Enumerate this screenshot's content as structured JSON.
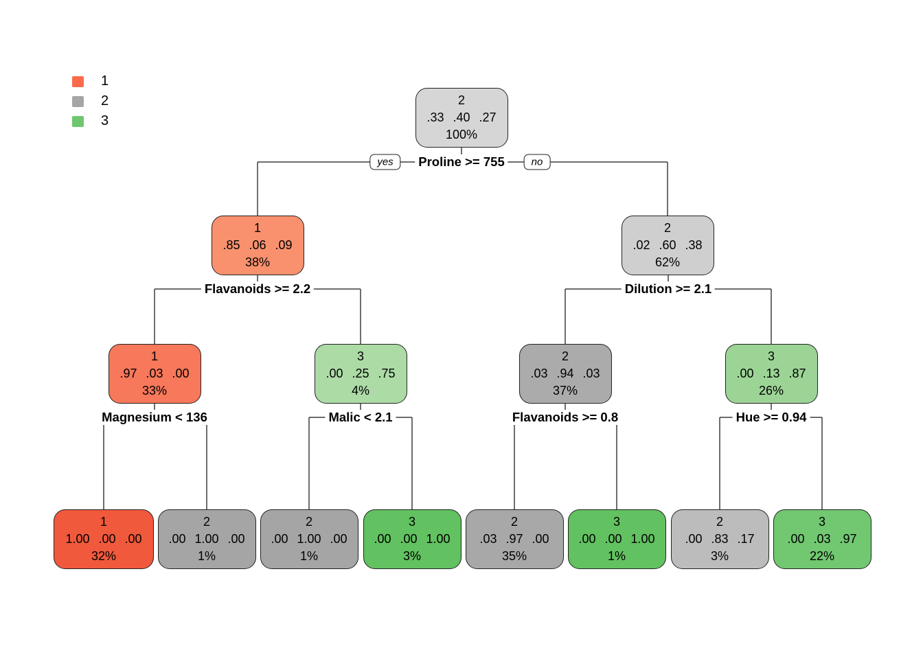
{
  "legend": {
    "items": [
      {
        "label": "1",
        "color": "#FB6B4B"
      },
      {
        "label": "2",
        "color": "#A6A6A6"
      },
      {
        "label": "3",
        "color": "#6FC66E"
      }
    ]
  },
  "tree": {
    "nodes": [
      {
        "id": "root",
        "class_label": "2",
        "probs": ".33 .40 .27",
        "pct": "100%",
        "color": "#D6D6D6"
      },
      {
        "id": "n2L",
        "class_label": "1",
        "probs": ".85 .06 .09",
        "pct": "38%",
        "color": "#F9916E"
      },
      {
        "id": "n2R",
        "class_label": "2",
        "probs": ".02 .60 .38",
        "pct": "62%",
        "color": "#CFCFCF"
      },
      {
        "id": "n3a",
        "class_label": "1",
        "probs": ".97 .03 .00",
        "pct": "33%",
        "color": "#F7785A"
      },
      {
        "id": "n3b",
        "class_label": "3",
        "probs": ".00 .25 .75",
        "pct": "4%",
        "color": "#ACDBA6"
      },
      {
        "id": "n3c",
        "class_label": "2",
        "probs": ".03 .94 .03",
        "pct": "37%",
        "color": "#ABABAB"
      },
      {
        "id": "n3d",
        "class_label": "3",
        "probs": ".00 .13 .87",
        "pct": "26%",
        "color": "#9CD496"
      },
      {
        "id": "l1",
        "class_label": "1",
        "probs": "1.00 .00 .00",
        "pct": "32%",
        "color": "#F0593C"
      },
      {
        "id": "l2",
        "class_label": "2",
        "probs": ".00 1.00 .00",
        "pct": "1%",
        "color": "#A5A5A5"
      },
      {
        "id": "l3",
        "class_label": "2",
        "probs": ".00 1.00 .00",
        "pct": "1%",
        "color": "#A5A5A5"
      },
      {
        "id": "l4",
        "class_label": "3",
        "probs": ".00 .00 1.00",
        "pct": "3%",
        "color": "#62C160"
      },
      {
        "id": "l5",
        "class_label": "2",
        "probs": ".03 .97 .00",
        "pct": "35%",
        "color": "#A8A8A8"
      },
      {
        "id": "l6",
        "class_label": "3",
        "probs": ".00 .00 1.00",
        "pct": "1%",
        "color": "#62C160"
      },
      {
        "id": "l7",
        "class_label": "2",
        "probs": ".00 .83 .17",
        "pct": "3%",
        "color": "#BCBCBC"
      },
      {
        "id": "l8",
        "class_label": "3",
        "probs": ".00 .03 .97",
        "pct": "22%",
        "color": "#72C771"
      }
    ],
    "splits": [
      {
        "id": "s1",
        "label": "Proline >= 755",
        "yes_label": "yes",
        "no_label": "no"
      },
      {
        "id": "s2",
        "label": "Flavanoids >= 2.2"
      },
      {
        "id": "s3",
        "label": "Dilution >= 2.1"
      },
      {
        "id": "s4",
        "label": "Magnesium < 136"
      },
      {
        "id": "s5",
        "label": "Malic < 2.1"
      },
      {
        "id": "s6",
        "label": "Flavanoids >= 0.8"
      },
      {
        "id": "s7",
        "label": "Hue >= 0.94"
      }
    ]
  }
}
